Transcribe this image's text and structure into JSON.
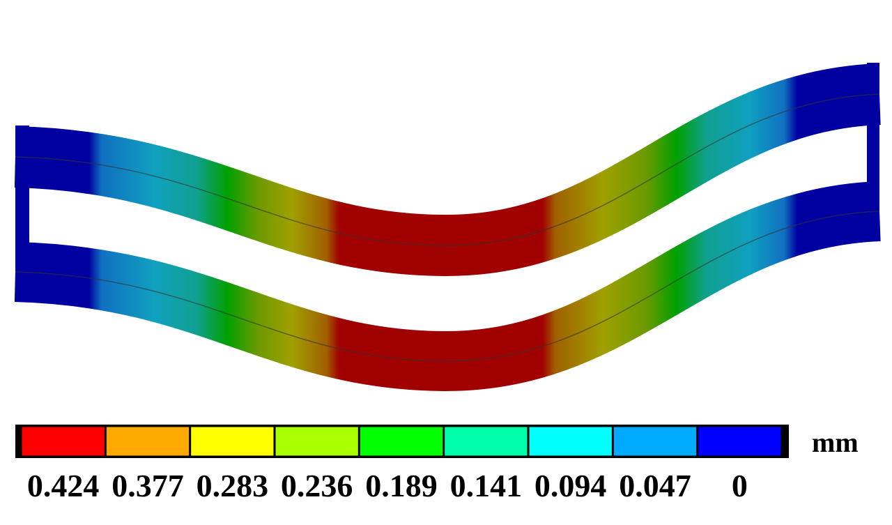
{
  "legend": {
    "unit": "mm",
    "labels": [
      "0.424",
      "0.377",
      "0.283",
      "0.236",
      "0.189",
      "0.141",
      "0.094",
      "0.047",
      "0"
    ],
    "colors": [
      "#ff0000",
      "#ffaa00",
      "#ffff00",
      "#aaff00",
      "#00ff00",
      "#00ffaa",
      "#00ffff",
      "#00aaff",
      "#0000ff"
    ]
  }
}
